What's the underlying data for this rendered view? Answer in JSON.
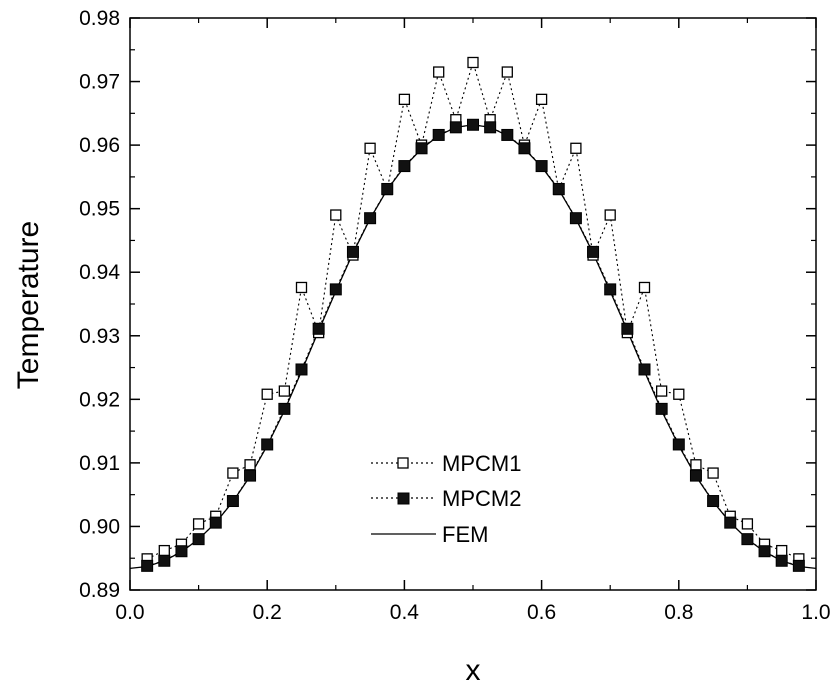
{
  "chart_data": {
    "type": "line",
    "title": "",
    "xlabel": "x",
    "ylabel": "Temperature",
    "xlim": [
      0.0,
      1.0
    ],
    "ylim": [
      0.89,
      0.98
    ],
    "xticks": [
      0.0,
      0.2,
      0.4,
      0.6,
      0.8,
      1.0
    ],
    "xtick_labels": [
      "0.0",
      "0.2",
      "0.4",
      "0.6",
      "0.8",
      "1.0"
    ],
    "yticks": [
      0.89,
      0.9,
      0.91,
      0.92,
      0.93,
      0.94,
      0.95,
      0.96,
      0.97,
      0.98
    ],
    "ytick_labels": [
      "0.89",
      "0.90",
      "0.91",
      "0.92",
      "0.93",
      "0.94",
      "0.95",
      "0.96",
      "0.97",
      "0.98"
    ],
    "grid": false,
    "legend_position": "center-bottom",
    "series": [
      {
        "name": "MPCM1",
        "style": "dotted line with open square markers",
        "color": "#000000",
        "x": [
          0.025,
          0.05,
          0.075,
          0.1,
          0.125,
          0.15,
          0.175,
          0.2,
          0.225,
          0.25,
          0.275,
          0.3,
          0.325,
          0.35,
          0.375,
          0.4,
          0.425,
          0.45,
          0.475,
          0.5,
          0.525,
          0.55,
          0.575,
          0.6,
          0.625,
          0.65,
          0.675,
          0.7,
          0.725,
          0.75,
          0.775,
          0.8,
          0.825,
          0.85,
          0.875,
          0.9,
          0.925,
          0.95,
          0.975
        ],
        "y": [
          0.8949,
          0.8962,
          0.8972,
          0.9004,
          0.9016,
          0.9084,
          0.9097,
          0.9208,
          0.9213,
          0.9376,
          0.9305,
          0.949,
          0.9427,
          0.9595,
          0.953,
          0.9672,
          0.96,
          0.9715,
          0.964,
          0.973,
          0.964,
          0.9715,
          0.96,
          0.9672,
          0.953,
          0.9595,
          0.9427,
          0.949,
          0.9305,
          0.9376,
          0.9213,
          0.9208,
          0.9097,
          0.9084,
          0.9016,
          0.9004,
          0.8972,
          0.8962,
          0.8949
        ]
      },
      {
        "name": "MPCM2",
        "style": "dotted line with filled square markers",
        "color": "#000000",
        "x": [
          0.025,
          0.05,
          0.075,
          0.1,
          0.125,
          0.15,
          0.175,
          0.2,
          0.225,
          0.25,
          0.275,
          0.3,
          0.325,
          0.35,
          0.375,
          0.4,
          0.425,
          0.45,
          0.475,
          0.5,
          0.525,
          0.55,
          0.575,
          0.6,
          0.625,
          0.65,
          0.675,
          0.7,
          0.725,
          0.75,
          0.775,
          0.8,
          0.825,
          0.85,
          0.875,
          0.9,
          0.925,
          0.95,
          0.975
        ],
        "y": [
          0.8938,
          0.8946,
          0.8961,
          0.898,
          0.9006,
          0.904,
          0.908,
          0.9129,
          0.9185,
          0.9247,
          0.9311,
          0.9373,
          0.9432,
          0.9485,
          0.9531,
          0.9567,
          0.9595,
          0.9616,
          0.9628,
          0.9632,
          0.9628,
          0.9616,
          0.9595,
          0.9567,
          0.9531,
          0.9485,
          0.9432,
          0.9373,
          0.9311,
          0.9247,
          0.9185,
          0.9129,
          0.908,
          0.904,
          0.9006,
          0.898,
          0.8961,
          0.8946,
          0.8938
        ]
      },
      {
        "name": "FEM",
        "style": "solid line",
        "color": "#000000",
        "x": [
          0.0,
          0.025,
          0.05,
          0.075,
          0.1,
          0.125,
          0.15,
          0.175,
          0.2,
          0.225,
          0.25,
          0.275,
          0.3,
          0.325,
          0.35,
          0.375,
          0.4,
          0.425,
          0.45,
          0.475,
          0.5,
          0.525,
          0.55,
          0.575,
          0.6,
          0.625,
          0.65,
          0.675,
          0.7,
          0.725,
          0.75,
          0.775,
          0.8,
          0.825,
          0.85,
          0.875,
          0.9,
          0.925,
          0.95,
          0.975,
          1.0
        ],
        "y": [
          0.8934,
          0.8937,
          0.8946,
          0.896,
          0.898,
          0.9006,
          0.9039,
          0.9079,
          0.9127,
          0.9182,
          0.9244,
          0.9308,
          0.937,
          0.943,
          0.9484,
          0.953,
          0.9566,
          0.9594,
          0.9615,
          0.9628,
          0.9632,
          0.9628,
          0.9615,
          0.9594,
          0.9566,
          0.953,
          0.9484,
          0.943,
          0.937,
          0.9308,
          0.9244,
          0.9182,
          0.9127,
          0.9079,
          0.9039,
          0.9006,
          0.898,
          0.896,
          0.8946,
          0.8937,
          0.8934
        ]
      }
    ]
  }
}
